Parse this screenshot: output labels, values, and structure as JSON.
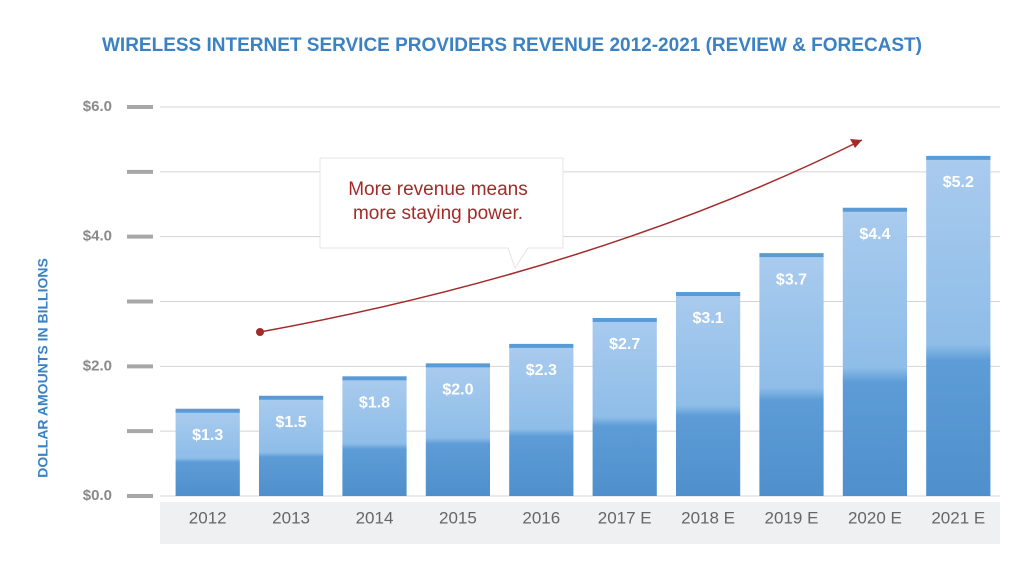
{
  "chart_data": {
    "type": "bar",
    "title": "WIRELESS INTERNET SERVICE PROVIDERS REVENUE 2012-2021 (REVIEW & FORECAST)",
    "y_label": "DOLLAR AMOUNTS IN BILLIONS",
    "annotation": [
      "More revenue means",
      "more staying power."
    ],
    "categories": [
      "2012",
      "2013",
      "2014",
      "2015",
      "2016",
      "2017 E",
      "2018 E",
      "2019 E",
      "2020 E",
      "2021 E"
    ],
    "values": [
      1.3,
      1.5,
      1.8,
      2.0,
      2.3,
      2.7,
      3.1,
      3.7,
      4.4,
      5.2
    ],
    "value_labels": [
      "$1.3",
      "$1.5",
      "$1.8",
      "$2.0",
      "$2.3",
      "$2.7",
      "$3.1",
      "$3.7",
      "$4.4",
      "$5.2"
    ],
    "color": "#5b9bd5",
    "ylim": [
      0,
      6
    ],
    "yticks": [
      {
        "value": 0,
        "label": "$0.0"
      },
      {
        "value": 2,
        "label": "$2.0"
      },
      {
        "value": 4,
        "label": "$4.0"
      },
      {
        "value": 6,
        "label": "$6.0"
      }
    ],
    "minor_yticks": [
      1,
      3,
      5
    ],
    "grid": true
  }
}
